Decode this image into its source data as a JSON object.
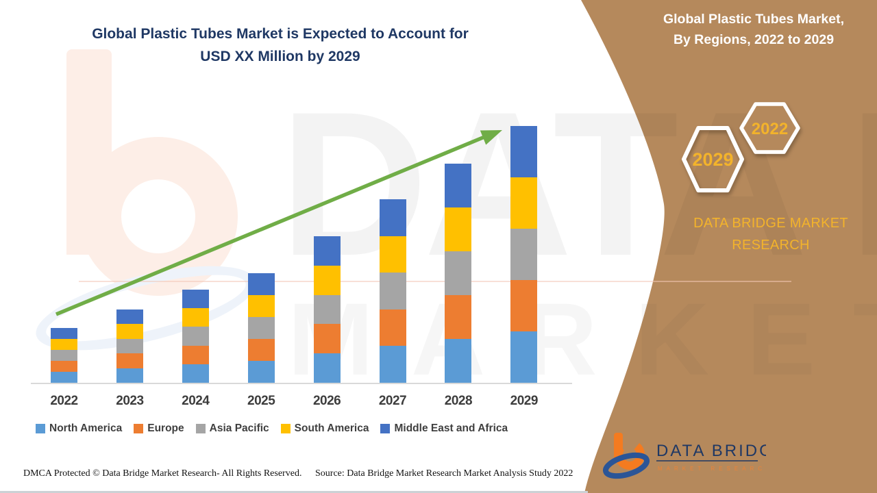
{
  "header": {
    "title_line1": "Global Plastic Tubes Market is Expected to Account for",
    "title_line2": "USD XX Million by 2029"
  },
  "sidebar": {
    "heading_line1": "Global Plastic Tubes Market,",
    "heading_line2": "By Regions, 2022 to 2029",
    "hexagon_big_label": "2029",
    "hexagon_small_label": "2022",
    "brand_line1": "DATA BRIDGE MARKET",
    "brand_line2": "RESEARCH",
    "background_color": "#b5895c",
    "accent_text_color": "#f3b32b"
  },
  "chart_data": {
    "type": "bar",
    "stacked": true,
    "title": "Global Plastic Tubes Market is Expected to Account for USD XX Million by 2029",
    "xlabel": "",
    "ylabel": "",
    "value_axis_visible": false,
    "value_note": "values undisclosed (USD XX Million); series values are relative heights read from the plot",
    "legend_position": "bottom",
    "grid": false,
    "trend_arrow": {
      "present": true,
      "color": "#70ad47",
      "direction": "up-right"
    },
    "categories": [
      "2022",
      "2023",
      "2024",
      "2025",
      "2026",
      "2027",
      "2028",
      "2029"
    ],
    "series": [
      {
        "name": "North America",
        "color": "#5b9bd5",
        "values": [
          16,
          21.4,
          27.2,
          32,
          42.8,
          53.6,
          64,
          75
        ]
      },
      {
        "name": "Europe",
        "color": "#ed7d31",
        "values": [
          16,
          21.4,
          27.2,
          32,
          42.8,
          53.6,
          64,
          75
        ]
      },
      {
        "name": "Asia Pacific",
        "color": "#a5a5a5",
        "values": [
          16,
          21.4,
          27.2,
          32,
          42.8,
          53.6,
          64,
          75
        ]
      },
      {
        "name": "South America",
        "color": "#ffc000",
        "values": [
          16,
          21.4,
          27.2,
          32,
          42.8,
          53.6,
          64,
          75
        ]
      },
      {
        "name": "Middle East and Africa",
        "color": "#4472c4",
        "values": [
          16,
          21.4,
          27.2,
          32,
          42.8,
          53.6,
          64,
          75
        ]
      }
    ],
    "stack_totals": [
      80,
      107,
      136,
      160,
      214,
      268,
      320,
      375
    ]
  },
  "watermark": {
    "line1": "DATA BRIDGE",
    "line2": "MARKET RESEARCH"
  },
  "footer": {
    "dmca": "DMCA Protected © Data Bridge Market Research- All Rights Reserved.",
    "source": "Source: Data Bridge Market Research Market Analysis Study 2022"
  },
  "logo": {
    "name": "DATA BRIDGE",
    "tagline": "MARKET RESEARCH"
  }
}
